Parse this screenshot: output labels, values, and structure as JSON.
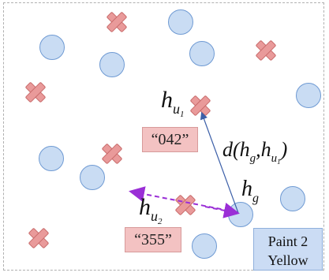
{
  "labels": {
    "hu1": "h",
    "hu1_sub": "u",
    "hu1_subsub": "1",
    "hu2": "h",
    "hu2_sub": "u",
    "hu2_subsub": "2",
    "hg": "h",
    "hg_sub": "g",
    "distance": "d(h",
    "distance_sub_g": "g",
    "distance_mid": ",h",
    "distance_sub_u": "u",
    "distance_subsub": "1",
    "distance_end": ")"
  },
  "codes": {
    "code1": "“042”",
    "code2": "“355”"
  },
  "paint_box": {
    "line1": "Paint 2",
    "line2": "Yellow"
  },
  "colors": {
    "circle_fill": "#c9dcf3",
    "circle_stroke": "#6f9ad3",
    "cross_fill": "#e99a9a",
    "arrow_blue": "#3c5fa8",
    "arrow_purple": "#9a2fd6",
    "code_bg": "#f3c2c2",
    "paint_bg": "#cbdcf4"
  }
}
